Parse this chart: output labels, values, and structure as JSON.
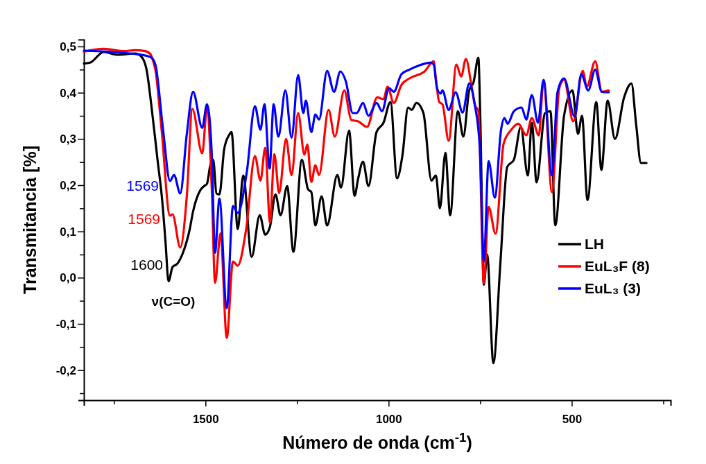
{
  "chart_data": {
    "type": "line",
    "xlabel": "Número de onda (cm$^{-1}$)",
    "ylabel": "Transmitancia [%]",
    "xlim": [
      1832,
      230
    ],
    "ylim": [
      -0.265,
      0.515
    ],
    "xticks": [
      {
        "value": 1750,
        "label": null
      },
      1500,
      {
        "value": 1250,
        "label": null
      },
      1000,
      {
        "value": 750,
        "label": null
      },
      500,
      {
        "value": 250,
        "label": null
      }
    ],
    "yticks": [
      {
        "value": -0.25,
        "label": null
      },
      {
        "value": -0.2,
        "label": "-0,2"
      },
      {
        "value": -0.15,
        "label": null
      },
      {
        "value": -0.1,
        "label": "-0,1"
      },
      {
        "value": -0.05,
        "label": null
      },
      {
        "value": 0,
        "label": "0,0"
      },
      {
        "value": 0.05,
        "label": null
      },
      {
        "value": 0.1,
        "label": "0,1"
      },
      {
        "value": 0.15,
        "label": null
      },
      {
        "value": 0.2,
        "label": "0,2"
      },
      {
        "value": 0.25,
        "label": null
      },
      {
        "value": 0.3,
        "label": "0,3"
      },
      {
        "value": 0.35,
        "label": null
      },
      {
        "value": 0.4,
        "label": "0,4"
      },
      {
        "value": 0.45,
        "label": null
      },
      {
        "value": 0.5,
        "label": "0,5"
      }
    ],
    "grid": false,
    "legend": "right",
    "marker": "none",
    "line_style": "solid",
    "annotations": [
      "1569",
      "1569",
      "1600",
      "ν(C=O)"
    ],
    "series": [
      {
        "name": "LH",
        "color": "#000000",
        "x": [
          1832,
          1815,
          1778,
          1740,
          1721,
          1693,
          1674,
          1661,
          1646,
          1631,
          1618,
          1609,
          1601,
          1590,
          1577,
          1562,
          1543,
          1534,
          1515,
          1504,
          1496,
          1487,
          1479,
          1470,
          1462,
          1449,
          1436,
          1429,
          1412,
          1397,
          1374,
          1352,
          1337,
          1324,
          1309,
          1295,
          1277,
          1260,
          1237,
          1220,
          1211,
          1200,
          1183,
          1168,
          1140,
          1130,
          1108,
          1093,
          1083,
          1070,
          1055,
          1033,
          1014,
          995,
          977,
          962,
          947,
          937,
          924,
          905,
          883,
          871,
          860,
          845,
          832,
          811,
          796,
          780,
          768,
          755,
          750,
          740,
          731,
          714,
          695,
          676,
          658,
          639,
          620,
          609,
          596,
          573,
          558,
          545,
          521,
          498,
          483,
          472,
          457,
          433,
          419,
          402,
          382,
          357,
          337,
          324,
          311,
          296
        ],
        "values": [
          0.463,
          0.465,
          0.488,
          0.482,
          0.483,
          0.485,
          0.477,
          0.45,
          0.36,
          0.255,
          0.165,
          0.075,
          -0.008,
          0.023,
          0.03,
          0.053,
          0.105,
          0.143,
          0.188,
          0.198,
          0.203,
          0.243,
          0.255,
          0.182,
          0.18,
          0.278,
          0.308,
          0.315,
          0.105,
          0.221,
          0.045,
          0.135,
          0.093,
          0.11,
          0.18,
          0.135,
          0.198,
          0.056,
          0.255,
          0.191,
          0.185,
          0.113,
          0.176,
          0.113,
          0.222,
          0.195,
          0.318,
          0.177,
          0.215,
          0.251,
          0.198,
          0.315,
          0.335,
          0.38,
          0.215,
          0.266,
          0.368,
          0.363,
          0.378,
          0.356,
          0.21,
          0.221,
          0.15,
          0.27,
          0.135,
          0.36,
          0.305,
          0.405,
          0.423,
          0.476,
          0.356,
          -0.015,
          0.05,
          -0.185,
          0.03,
          0.24,
          0.255,
          0.326,
          0.221,
          0.335,
          0.206,
          0.356,
          0.36,
          0.113,
          0.35,
          0.405,
          0.311,
          0.35,
          0.168,
          0.38,
          0.233,
          0.383,
          0.3,
          0.39,
          0.42,
          0.33,
          0.248,
          0.248
        ]
      },
      {
        "name": "EuL₃F (8)",
        "color": "#ff0000",
        "x": [
          1832,
          1778,
          1721,
          1693,
          1665,
          1650,
          1644,
          1637,
          1620,
          1597,
          1590,
          1569,
          1551,
          1536,
          1509,
          1496,
          1483,
          1474,
          1459,
          1442,
          1425,
          1412,
          1389,
          1365,
          1350,
          1337,
          1324,
          1312,
          1299,
          1280,
          1265,
          1247,
          1230,
          1222,
          1211,
          1200,
          1190,
          1164,
          1147,
          1121,
          1102,
          1083,
          1059,
          1031,
          1014,
          1003,
          986,
          965,
          943,
          902,
          877,
          871,
          862,
          853,
          836,
          815,
          802,
          789,
          774,
          765,
          755,
          740,
          727,
          708,
          686,
          665,
          646,
          624,
          609,
          590,
          577,
          554,
          534,
          521,
          496,
          470,
          459,
          436,
          418,
          399
        ],
        "values": [
          0.489,
          0.495,
          0.49,
          0.492,
          0.49,
          0.483,
          0.471,
          0.45,
          0.321,
          0.134,
          0.137,
          0.065,
          0.177,
          0.365,
          0.269,
          0.365,
          0.194,
          -0.011,
          0.096,
          -0.13,
          0.035,
          0.026,
          0.105,
          0.263,
          0.21,
          0.281,
          0.12,
          0.267,
          0.183,
          0.3,
          0.222,
          0.356,
          0.266,
          0.288,
          0.207,
          0.243,
          0.222,
          0.363,
          0.305,
          0.405,
          0.341,
          0.338,
          0.326,
          0.39,
          0.386,
          0.413,
          0.378,
          0.417,
          0.431,
          0.446,
          0.468,
          0.431,
          0.38,
          0.375,
          0.296,
          0.461,
          0.435,
          0.473,
          0.416,
          0.375,
          0.36,
          -0.012,
          0.153,
          0.095,
          0.29,
          0.32,
          0.333,
          0.308,
          0.345,
          0.308,
          0.425,
          0.185,
          0.41,
          0.428,
          0.338,
          0.447,
          0.413,
          0.468,
          0.402,
          0.405
        ]
      },
      {
        "name": "EuL₃ (3)",
        "color": "#0000ff",
        "x": [
          1832,
          1684,
          1650,
          1637,
          1616,
          1597,
          1586,
          1569,
          1551,
          1534,
          1509,
          1496,
          1483,
          1474,
          1462,
          1442,
          1425,
          1412,
          1387,
          1365,
          1350,
          1339,
          1325,
          1314,
          1301,
          1282,
          1265,
          1247,
          1233,
          1226,
          1211,
          1200,
          1190,
          1168,
          1149,
          1132,
          1117,
          1098,
          1087,
          1070,
          1055,
          1033,
          1018,
          999,
          986,
          965,
          943,
          920,
          886,
          877,
          868,
          858,
          853,
          836,
          817,
          798,
          780,
          765,
          751,
          740,
          727,
          710,
          693,
          684,
          675,
          658,
          637,
          624,
          609,
          592,
          577,
          554,
          539,
          521,
          492,
          474,
          455,
          436,
          418,
          399
        ],
        "values": [
          0.491,
          0.483,
          0.477,
          0.461,
          0.321,
          0.209,
          0.222,
          0.182,
          0.311,
          0.402,
          0.324,
          0.375,
          0.269,
          0.054,
          0.171,
          -0.066,
          0.155,
          0.14,
          0.23,
          0.371,
          0.32,
          0.375,
          0.236,
          0.375,
          0.305,
          0.405,
          0.303,
          0.438,
          0.356,
          0.383,
          0.315,
          0.353,
          0.342,
          0.447,
          0.402,
          0.446,
          0.425,
          0.356,
          0.356,
          0.378,
          0.35,
          0.378,
          0.36,
          0.41,
          0.402,
          0.44,
          0.45,
          0.458,
          0.465,
          0.461,
          0.41,
          0.398,
          0.405,
          0.363,
          0.401,
          0.357,
          0.42,
          0.375,
          0.281,
          0.035,
          0.252,
          0.173,
          0.32,
          0.345,
          0.333,
          0.36,
          0.368,
          0.342,
          0.395,
          0.335,
          0.428,
          0.221,
          0.401,
          0.431,
          0.348,
          0.44,
          0.405,
          0.45,
          0.402,
          0.401
        ]
      }
    ]
  }
}
